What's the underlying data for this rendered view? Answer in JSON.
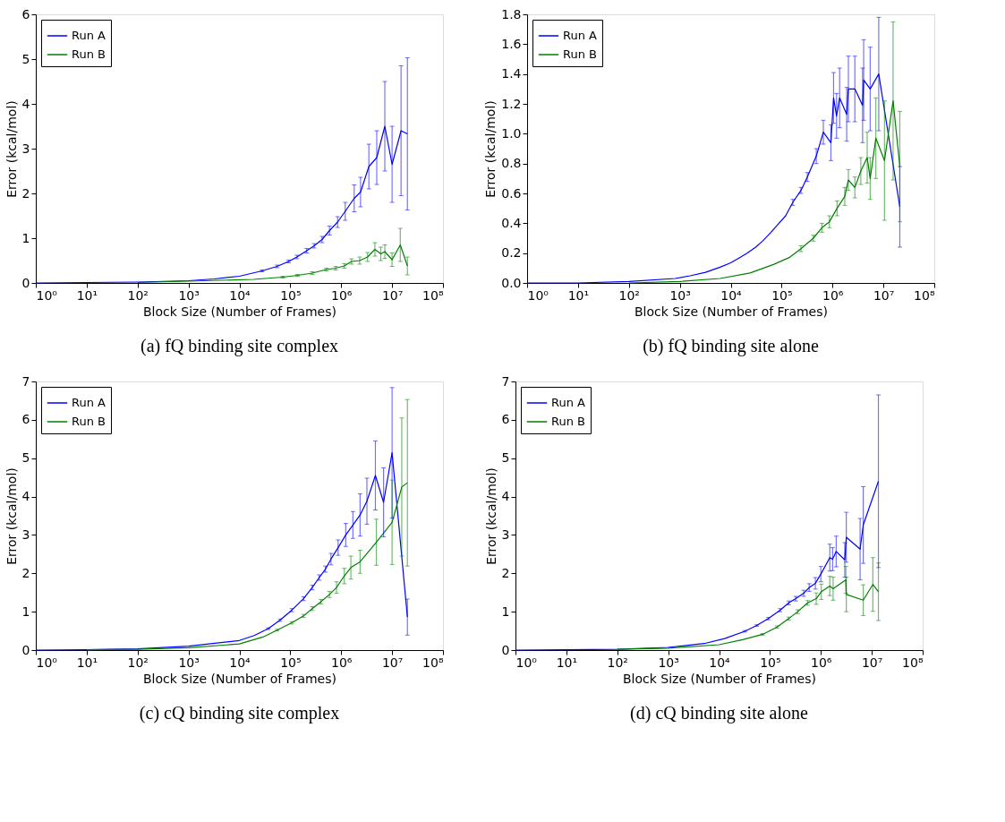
{
  "chart_data": [
    {
      "type": "line",
      "title": "(a) fQ binding site complex",
      "xlabel": "Block Size (Number of Frames)",
      "ylabel": "Error (kcal/mol)",
      "log": "x",
      "legend": "top left",
      "grid": false,
      "marker": "none",
      "line_style": "solid",
      "xlim": [
        1,
        100000000
      ],
      "xticks": [
        {
          "value": 1,
          "label": "10⁰"
        },
        {
          "value": 10,
          "label": "10¹"
        },
        {
          "value": 100,
          "label": "10²"
        },
        {
          "value": 1000,
          "label": "10³"
        },
        {
          "value": 10000,
          "label": "10⁴"
        },
        {
          "value": 100000,
          "label": "10⁵"
        },
        {
          "value": 1000000,
          "label": "10⁶"
        },
        {
          "value": 10000000,
          "label": "10⁷"
        },
        {
          "value": 100000000,
          "label": "10⁸"
        }
      ],
      "ylim": [
        0,
        6
      ],
      "yticks": [
        0,
        1,
        2,
        3,
        4,
        5,
        6
      ],
      "series": [
        {
          "name": "Run A",
          "color": "#0000ff",
          "x": [
            1,
            10,
            100,
            1000,
            3200,
            10000,
            28000,
            55000,
            93000,
            135000,
            210000,
            295000,
            420000,
            590000,
            850000,
            1200000,
            1800000,
            2400000,
            3500000,
            5000000,
            7200000,
            10000000,
            15000000,
            20000000
          ],
          "values": [
            0,
            0.01,
            0.02,
            0.05,
            0.09,
            0.15,
            0.27,
            0.37,
            0.48,
            0.58,
            0.72,
            0.83,
            0.97,
            1.17,
            1.36,
            1.6,
            1.89,
            2.03,
            2.6,
            2.8,
            3.5,
            2.65,
            3.4,
            3.33
          ],
          "errors": [
            null,
            null,
            null,
            null,
            null,
            null,
            0.02,
            0.03,
            0.03,
            0.04,
            0.05,
            0.05,
            0.07,
            0.1,
            0.12,
            0.2,
            0.3,
            0.33,
            0.5,
            0.6,
            1.0,
            0.85,
            1.45,
            1.7
          ]
        },
        {
          "name": "Run B",
          "color": "#008000",
          "x": [
            100,
            1000,
            19000,
            71000,
            138000,
            270000,
            510000,
            780000,
            1150000,
            1600000,
            2300000,
            3300000,
            4600000,
            6000000,
            7200000,
            10000000,
            14500000,
            20000000
          ],
          "values": [
            0.01,
            0.04,
            0.08,
            0.13,
            0.17,
            0.22,
            0.3,
            0.33,
            0.38,
            0.48,
            0.5,
            0.58,
            0.75,
            0.65,
            0.7,
            0.52,
            0.85,
            0.38
          ],
          "errors": [
            null,
            null,
            null,
            0.02,
            0.02,
            0.03,
            0.03,
            0.04,
            0.05,
            0.06,
            0.08,
            0.1,
            0.15,
            0.15,
            0.15,
            0.15,
            0.37,
            0.2
          ]
        }
      ]
    },
    {
      "type": "line",
      "title": "(b) fQ binding site alone",
      "xlabel": "Block Size (Number of Frames)",
      "ylabel": "Error (kcal/mol)",
      "log": "x",
      "legend": "top left",
      "grid": false,
      "marker": "none",
      "line_style": "solid",
      "xlim": [
        1,
        100000000
      ],
      "xticks": [
        {
          "value": 1,
          "label": "10⁰"
        },
        {
          "value": 10,
          "label": "10¹"
        },
        {
          "value": 100,
          "label": "10²"
        },
        {
          "value": 1000,
          "label": "10³"
        },
        {
          "value": 10000,
          "label": "10⁴"
        },
        {
          "value": 100000,
          "label": "10⁵"
        },
        {
          "value": 1000000,
          "label": "10⁶"
        },
        {
          "value": 10000000,
          "label": "10⁷"
        },
        {
          "value": 100000000,
          "label": "10⁸"
        }
      ],
      "ylim": [
        0,
        1.8
      ],
      "yticks": [
        {
          "value": 0,
          "label": "0.0"
        },
        {
          "value": 0.2,
          "label": "0.2"
        },
        {
          "value": 0.4,
          "label": "0.4"
        },
        {
          "value": 0.6,
          "label": "0.6"
        },
        {
          "value": 0.8,
          "label": "0.8"
        },
        {
          "value": 1,
          "label": "1.0"
        },
        {
          "value": 1.2,
          "label": "1.2"
        },
        {
          "value": 1.4,
          "label": "1.4"
        },
        {
          "value": 1.6,
          "label": "1.6"
        },
        {
          "value": 1.8,
          "label": "1.8"
        }
      ],
      "series": [
        {
          "name": "Run A",
          "color": "#0000ff",
          "x": [
            1,
            10,
            100,
            810,
            1600,
            3200,
            6200,
            10000,
            15000,
            21000,
            31000,
            42000,
            62000,
            81000,
            120000,
            166000,
            240000,
            320000,
            480000,
            660000,
            930000,
            1050000,
            1200000,
            1380000,
            1900000,
            2050000,
            2750000,
            3900000,
            4100000,
            5500000,
            8100000,
            21000000
          ],
          "values": [
            0,
            0,
            0.01,
            0.03,
            0.048,
            0.071,
            0.106,
            0.135,
            0.17,
            0.2,
            0.24,
            0.28,
            0.34,
            0.385,
            0.45,
            0.54,
            0.62,
            0.71,
            0.85,
            1.01,
            0.94,
            1.24,
            1.12,
            1.24,
            1.13,
            1.3,
            1.3,
            1.19,
            1.36,
            1.3,
            1.4,
            0.51
          ],
          "errors": [
            null,
            null,
            null,
            null,
            null,
            null,
            null,
            null,
            null,
            null,
            null,
            null,
            null,
            null,
            null,
            0.02,
            0.02,
            0.03,
            0.05,
            0.08,
            0.12,
            0.17,
            0.15,
            0.2,
            0.18,
            0.22,
            0.22,
            0.25,
            0.27,
            0.28,
            0.38,
            0.27
          ]
        },
        {
          "name": "Run B",
          "color": "#008000",
          "x": [
            100,
            1000,
            6200,
            24000,
            71000,
            141000,
            240000,
            420000,
            620000,
            870000,
            1230000,
            1740000,
            2050000,
            2750000,
            3600000,
            4800000,
            5500000,
            7100000,
            10500000,
            15500000,
            21000000
          ],
          "values": [
            0,
            0.01,
            0.03,
            0.067,
            0.125,
            0.17,
            0.23,
            0.3,
            0.37,
            0.41,
            0.5,
            0.58,
            0.69,
            0.64,
            0.75,
            0.84,
            0.7,
            0.97,
            0.82,
            1.22,
            0.78
          ],
          "errors": [
            null,
            null,
            null,
            null,
            null,
            null,
            0.02,
            0.02,
            0.03,
            0.04,
            0.05,
            0.06,
            0.07,
            0.07,
            0.09,
            0.17,
            0.14,
            0.27,
            0.4,
            0.53,
            0.37
          ]
        }
      ]
    },
    {
      "type": "line",
      "title": "(c) cQ binding site complex",
      "xlabel": "Block Size (Number of Frames)",
      "ylabel": "Error (kcal/mol)",
      "log": "x",
      "legend": "top left",
      "grid": false,
      "marker": "none",
      "line_style": "solid",
      "xlim": [
        1,
        100000000
      ],
      "xticks": [
        {
          "value": 1,
          "label": "10⁰"
        },
        {
          "value": 10,
          "label": "10¹"
        },
        {
          "value": 100,
          "label": "10²"
        },
        {
          "value": 1000,
          "label": "10³"
        },
        {
          "value": 10000,
          "label": "10⁴"
        },
        {
          "value": 100000,
          "label": "10⁵"
        },
        {
          "value": 1000000,
          "label": "10⁶"
        },
        {
          "value": 10000000,
          "label": "10⁷"
        },
        {
          "value": 100000000,
          "label": "10⁸"
        }
      ],
      "ylim": [
        0,
        7
      ],
      "yticks": [
        0,
        1,
        2,
        3,
        4,
        5,
        6,
        7
      ],
      "series": [
        {
          "name": "Run A",
          "color": "#0000ff",
          "x": [
            1,
            10,
            100,
            1000,
            10000,
            19500,
            37000,
            63000,
            107000,
            182000,
            270000,
            370000,
            490000,
            630000,
            870000,
            1230000,
            1700000,
            2350000,
            3200000,
            4700000,
            6800000,
            10000000,
            20000000
          ],
          "values": [
            0,
            0.01,
            0.03,
            0.1,
            0.25,
            0.38,
            0.56,
            0.78,
            1.04,
            1.34,
            1.63,
            1.89,
            2.11,
            2.37,
            2.67,
            3.0,
            3.26,
            3.52,
            3.88,
            4.55,
            3.85,
            5.14,
            0.86
          ],
          "errors": [
            null,
            null,
            null,
            null,
            null,
            null,
            0.02,
            0.03,
            0.04,
            0.05,
            0.06,
            0.07,
            0.08,
            0.15,
            0.2,
            0.3,
            0.35,
            0.55,
            0.6,
            0.9,
            0.9,
            1.7,
            0.47
          ]
        },
        {
          "name": "Run B",
          "color": "#008000",
          "x": [
            10,
            100,
            1000,
            10000,
            29000,
            55000,
            107000,
            182000,
            270000,
            400000,
            590000,
            810000,
            1150000,
            1550000,
            2350000,
            4900000,
            10000000,
            15500000,
            20000000
          ],
          "values": [
            0.01,
            0.02,
            0.06,
            0.16,
            0.34,
            0.52,
            0.71,
            0.89,
            1.08,
            1.26,
            1.45,
            1.63,
            1.93,
            2.15,
            2.3,
            2.81,
            3.33,
            4.25,
            4.36
          ],
          "errors": [
            null,
            null,
            null,
            null,
            null,
            0.02,
            0.03,
            0.04,
            0.05,
            0.06,
            0.08,
            0.15,
            0.2,
            0.3,
            0.3,
            0.6,
            1.1,
            1.8,
            2.17
          ]
        }
      ]
    },
    {
      "type": "line",
      "title": "(d) cQ binding site alone",
      "xlabel": "Block Size (Number of Frames)",
      "ylabel": "Error (kcal/mol)",
      "log": "x",
      "legend": "top left",
      "grid": false,
      "marker": "none",
      "line_style": "solid",
      "xlim": [
        1,
        100000000
      ],
      "xticks": [
        {
          "value": 1,
          "label": "10⁰"
        },
        {
          "value": 10,
          "label": "10¹"
        },
        {
          "value": 100,
          "label": "10²"
        },
        {
          "value": 1000,
          "label": "10³"
        },
        {
          "value": 10000,
          "label": "10⁴"
        },
        {
          "value": 100000,
          "label": "10⁵"
        },
        {
          "value": 1000000,
          "label": "10⁶"
        },
        {
          "value": 10000000,
          "label": "10⁷"
        },
        {
          "value": 100000000,
          "label": "10⁸"
        }
      ],
      "ylim": [
        0,
        7
      ],
      "yticks": [
        0,
        1,
        2,
        3,
        4,
        5,
        6,
        7
      ],
      "series": [
        {
          "name": "Run A",
          "color": "#0000ff",
          "x": [
            1,
            10,
            100,
            1000,
            5100,
            12900,
            32000,
            55000,
            93000,
            158000,
            234000,
            320000,
            460000,
            590000,
            780000,
            1000000,
            1500000,
            1700000,
            2000000,
            2950000,
            3160000,
            5900000,
            6800000,
            13500000
          ],
          "values": [
            0,
            0.01,
            0.02,
            0.07,
            0.17,
            0.3,
            0.49,
            0.64,
            0.82,
            1.04,
            1.23,
            1.34,
            1.48,
            1.63,
            1.74,
            1.98,
            2.41,
            2.37,
            2.57,
            2.35,
            2.94,
            2.63,
            3.26,
            4.4
          ],
          "errors": [
            null,
            null,
            null,
            null,
            null,
            null,
            0.02,
            0.02,
            0.03,
            0.04,
            0.05,
            0.06,
            0.08,
            0.1,
            0.15,
            0.2,
            0.35,
            0.3,
            0.4,
            0.45,
            0.65,
            0.8,
            1.0,
            2.25
          ]
        },
        {
          "name": "Run B",
          "color": "#008000",
          "x": [
            100,
            1000,
            10000,
            29000,
            72000,
            138000,
            234000,
            350000,
            550000,
            810000,
            1020000,
            1500000,
            1740000,
            3100000,
            3160000,
            6800000,
            10500000,
            13500000
          ],
          "values": [
            0.02,
            0.05,
            0.14,
            0.27,
            0.41,
            0.6,
            0.82,
            1.0,
            1.23,
            1.34,
            1.52,
            1.67,
            1.6,
            1.83,
            1.45,
            1.3,
            1.71,
            1.52
          ],
          "errors": [
            null,
            null,
            null,
            null,
            0.02,
            0.03,
            0.04,
            0.05,
            0.06,
            0.15,
            0.2,
            0.25,
            0.3,
            0.35,
            0.45,
            0.4,
            0.7,
            0.75
          ]
        }
      ]
    }
  ]
}
